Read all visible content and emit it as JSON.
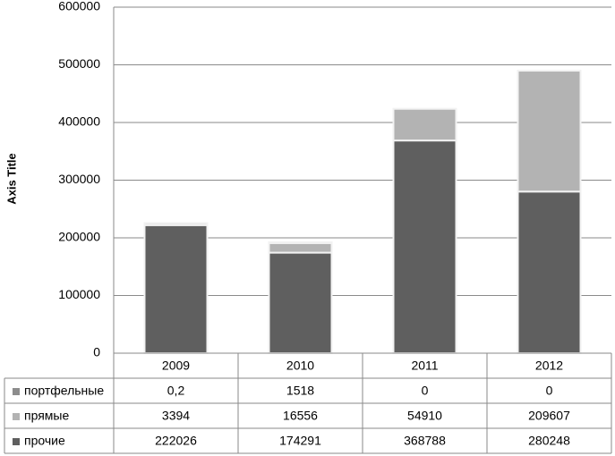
{
  "chart_data": {
    "type": "stacked-bar",
    "y_label": "Axis Title",
    "categories": [
      "2009",
      "2010",
      "2011",
      "2012"
    ],
    "series": [
      {
        "name": "портфельные",
        "color": "#8c8c8c",
        "values": [
          0.2,
          1518,
          0,
          0
        ],
        "value_labels": [
          "0,2",
          "1518",
          "0",
          "0"
        ]
      },
      {
        "name": "прямые",
        "color": "#b3b3b3",
        "values": [
          3394,
          16556,
          54910,
          209607
        ]
      },
      {
        "name": "прочие",
        "color": "#5f5f5f",
        "values": [
          222026,
          174291,
          368788,
          280248
        ]
      }
    ],
    "ylim": [
      0,
      600000
    ],
    "yticks": [
      0,
      100000,
      200000,
      300000,
      400000,
      500000,
      600000
    ],
    "grid": true,
    "data_table": true
  }
}
